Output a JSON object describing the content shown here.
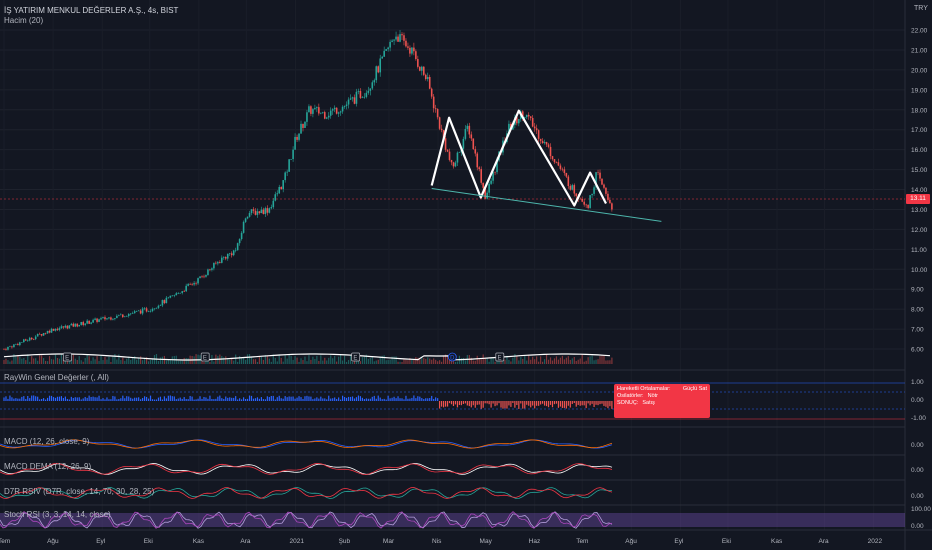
{
  "header": {
    "symbol_title": "İŞ YATIRIM MENKUL DEĞERLER A.Ş., 4s, BIST",
    "volume_label": "Hacim (20)",
    "currency": "TRY"
  },
  "price_scale": {
    "ticks": [
      "22.00",
      "21.00",
      "20.00",
      "19.00",
      "18.00",
      "17.00",
      "16.00",
      "15.00",
      "14.00",
      "13.00",
      "12.00",
      "11.00",
      "10.00",
      "9.00",
      "8.00",
      "7.00",
      "6.00"
    ],
    "last_price": "13.11"
  },
  "indicators": {
    "raywin": {
      "label": "RayWin Genel Değerler (, All)",
      "ticks": [
        "1.00",
        "0.00",
        "-1.00"
      ]
    },
    "macd": {
      "label": "MACD (12, 26, close, 9)",
      "tick": "0.00"
    },
    "macd_dema": {
      "label": "MACD DEMA (12, 26, 9)",
      "tick": "0.00"
    },
    "d7r_rsiv": {
      "label": "D7R RSIV (D7R, close, 14, 70, 30, 28, 25)",
      "tick": "0.00"
    },
    "stoch_rsi": {
      "label": "Stoch RSI (3, 3, 14, 14, close)",
      "ticks": [
        "100.00",
        "0.00"
      ]
    }
  },
  "tooltip": {
    "row1_label": "Hareketli Ortalamalar:",
    "row1_value": "Güçlü Sat",
    "row2_label": "Osilatörler:",
    "row2_value": "Nötr",
    "row3_label": "SONUÇ:",
    "row3_value": "Satış"
  },
  "time_axis": [
    "Tem",
    "Ağu",
    "Eyl",
    "Eki",
    "Kas",
    "Ara",
    "2021",
    "Şub",
    "Mar",
    "Nis",
    "May",
    "Haz",
    "Tem",
    "Ağu",
    "Eyl",
    "Eki",
    "Kas",
    "Ara",
    "2022"
  ],
  "earnings_markers": [
    "E",
    "E",
    "E",
    "E",
    "E"
  ],
  "dividend_marker": "D",
  "colors": {
    "up": "#26a69a",
    "down": "#ef5350",
    "bg": "#131722",
    "pattern": "#ffffff",
    "trendline": "#4db6ac",
    "stoch_band": "#7e57c2",
    "raywin_up": "#2962ff"
  },
  "chart_data": {
    "type": "candlestick",
    "x_range": [
      "2020-07",
      "2022-01"
    ],
    "ylim": [
      5.5,
      22.5
    ],
    "price_path": [
      {
        "date": "2020-07-01",
        "close": 6.0
      },
      {
        "date": "2020-07-20",
        "close": 6.6
      },
      {
        "date": "2020-08-01",
        "close": 7.0
      },
      {
        "date": "2020-08-15",
        "close": 7.2
      },
      {
        "date": "2020-09-01",
        "close": 7.5
      },
      {
        "date": "2020-09-20",
        "close": 7.8
      },
      {
        "date": "2020-10-01",
        "close": 8.0
      },
      {
        "date": "2020-10-15",
        "close": 8.6
      },
      {
        "date": "2020-11-01",
        "close": 9.5
      },
      {
        "date": "2020-11-15",
        "close": 10.5
      },
      {
        "date": "2020-11-25",
        "close": 11.0
      },
      {
        "date": "2020-12-01",
        "close": 12.8
      },
      {
        "date": "2020-12-15",
        "close": 13.0
      },
      {
        "date": "2020-12-25",
        "close": 14.5
      },
      {
        "date": "2021-01-01",
        "close": 16.5
      },
      {
        "date": "2021-01-10",
        "close": 18.0
      },
      {
        "date": "2021-01-20",
        "close": 17.8
      },
      {
        "date": "2021-02-01",
        "close": 18.2
      },
      {
        "date": "2021-02-15",
        "close": 19.0
      },
      {
        "date": "2021-02-25",
        "close": 20.5
      },
      {
        "date": "2021-03-05",
        "close": 21.8
      },
      {
        "date": "2021-03-15",
        "close": 21.0
      },
      {
        "date": "2021-03-25",
        "close": 19.5
      },
      {
        "date": "2021-04-01",
        "close": 17.5
      },
      {
        "date": "2021-04-10",
        "close": 15.0
      },
      {
        "date": "2021-04-20",
        "close": 17.2
      },
      {
        "date": "2021-05-01",
        "close": 13.6
      },
      {
        "date": "2021-05-15",
        "close": 17.0
      },
      {
        "date": "2021-05-25",
        "close": 17.9
      },
      {
        "date": "2021-06-10",
        "close": 16.0
      },
      {
        "date": "2021-06-25",
        "close": 14.0
      },
      {
        "date": "2021-07-05",
        "close": 13.2
      },
      {
        "date": "2021-07-10",
        "close": 14.8
      },
      {
        "date": "2021-07-20",
        "close": 13.1
      }
    ],
    "pattern": [
      {
        "date": "2021-03-28",
        "price": 14.2
      },
      {
        "date": "2021-04-08",
        "price": 17.6
      },
      {
        "date": "2021-04-28",
        "price": 13.6
      },
      {
        "date": "2021-05-22",
        "price": 17.95
      },
      {
        "date": "2021-06-26",
        "price": 13.2
      },
      {
        "date": "2021-07-06",
        "price": 14.85
      },
      {
        "date": "2021-07-16",
        "price": 13.3
      }
    ],
    "trendline": [
      {
        "date": "2021-03-28",
        "price": 14.05
      },
      {
        "date": "2021-08-20",
        "price": 12.4
      }
    ],
    "last_price": 13.11
  }
}
